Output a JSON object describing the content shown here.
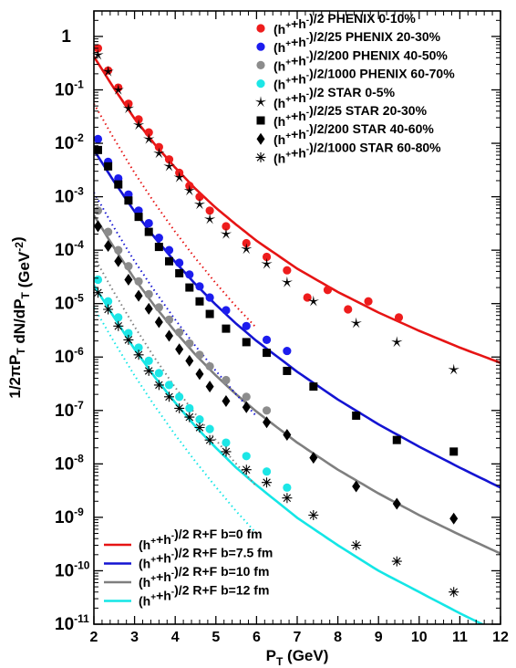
{
  "chart_data": {
    "type": "scatter",
    "xlabel_main": "P",
    "xlabel_sub": "T",
    "xlabel_rest": " (GeV)",
    "ylabel": "1/2πP_T dN/dP_T (GeV^-2)",
    "xlim": [
      2,
      12
    ],
    "ylim": [
      1e-11,
      3
    ],
    "yscale": "log",
    "grid": false,
    "x_ticks": [
      "2",
      "3",
      "4",
      "5",
      "6",
      "7",
      "8",
      "9",
      "10",
      "11",
      "12"
    ],
    "y_ticks": [
      {
        "base": "10",
        "exp": "-11"
      },
      {
        "base": "10",
        "exp": "-10"
      },
      {
        "base": "10",
        "exp": "-9"
      },
      {
        "base": "10",
        "exp": "-8"
      },
      {
        "base": "10",
        "exp": "-7"
      },
      {
        "base": "10",
        "exp": "-6"
      },
      {
        "base": "10",
        "exp": "-5"
      },
      {
        "base": "10",
        "exp": "-4"
      },
      {
        "base": "10",
        "exp": "-3"
      },
      {
        "base": "10",
        "exp": "-2"
      },
      {
        "base": "10",
        "exp": "-1"
      },
      {
        "base": "1",
        "exp": ""
      }
    ],
    "legend_top": [
      {
        "text": "(h⁺+h⁻)/2 PHENIX 0-10%",
        "marker": "circle",
        "color": "#ee1c1c"
      },
      {
        "text": "(h⁺+h⁻)/2/25 PHENIX 20-30%",
        "marker": "circle",
        "color": "#1c1cee"
      },
      {
        "text": "(h⁺+h⁻)/2/200 PHENIX 40-50%",
        "marker": "circle",
        "color": "#8c8c8c"
      },
      {
        "text": "(h⁺+h⁻)/2/1000 PHENIX 60-70%",
        "marker": "circle",
        "color": "#1ce6e6"
      },
      {
        "text": "(h⁺+h⁻)/2 STAR 0-5%",
        "marker": "star",
        "color": "#000000"
      },
      {
        "text": "(h⁺+h⁻)/2/25 STAR 20-30%",
        "marker": "square",
        "color": "#000000"
      },
      {
        "text": "(h⁺+h⁻)/2/200 STAR 40-60%",
        "marker": "diamond",
        "color": "#000000"
      },
      {
        "text": "(h⁺+h⁻)/2/1000 STAR 60-80%",
        "marker": "asterisk",
        "color": "#000000"
      }
    ],
    "legend_bottom": [
      {
        "text": "(h⁺+h⁻)/2 R+F b=0 fm",
        "color": "#e61414"
      },
      {
        "text": "(h⁺+h⁻)/2 R+F b=7.5 fm",
        "color": "#1414d2"
      },
      {
        "text": "(h⁺+h⁻)/2 R+F b=10 fm",
        "color": "#7f7f7f"
      },
      {
        "text": "(h⁺+h⁻)/2 R+F b=12 fm",
        "color": "#14e6e6"
      }
    ],
    "series": [
      {
        "name": "(h⁺+h⁻)/2 PHENIX 0-10%",
        "marker": "circle",
        "color": "#ee1c1c",
        "x": [
          2.1,
          2.35,
          2.6,
          2.85,
          3.1,
          3.35,
          3.6,
          3.85,
          4.1,
          4.35,
          4.6,
          4.85,
          5.25,
          5.75,
          6.25,
          6.75,
          7.25,
          7.75,
          8.25,
          8.75,
          9.5
        ],
        "y": [
          0.6,
          0.23,
          0.11,
          0.055,
          0.028,
          0.016,
          0.0085,
          0.005,
          0.0028,
          0.0016,
          0.001,
          0.00055,
          0.00028,
          0.000135,
          7.5e-05,
          4.2e-05,
          1.3e-05,
          1.8e-05,
          7.8e-06,
          1.1e-05,
          5.5e-06
        ]
      },
      {
        "name": "(h⁺+h⁻)/2/25 PHENIX 20-30%",
        "marker": "circle",
        "color": "#1c1cee",
        "x": [
          2.1,
          2.35,
          2.6,
          2.85,
          3.1,
          3.35,
          3.6,
          3.85,
          4.1,
          4.35,
          4.6,
          4.85,
          5.25,
          5.75,
          6.25,
          6.75
        ],
        "y": [
          0.012,
          0.0045,
          0.0022,
          0.0011,
          0.00055,
          0.00032,
          0.00017,
          0.0001,
          5.8e-05,
          3.5e-05,
          2.1e-05,
          1.3e-05,
          7.5e-06,
          3.8e-06,
          2.1e-06,
          1.3e-06
        ]
      },
      {
        "name": "(h⁺+h⁻)/2/200 PHENIX 40-50%",
        "marker": "circle",
        "color": "#8c8c8c",
        "x": [
          2.1,
          2.35,
          2.6,
          2.85,
          3.1,
          3.35,
          3.6,
          3.85,
          4.1,
          4.35,
          4.6,
          4.85,
          5.25,
          5.75,
          6.25
        ],
        "y": [
          0.00055,
          0.00022,
          0.0001,
          5e-05,
          2.6e-05,
          1.5e-05,
          8.5e-06,
          5e-06,
          2.9e-06,
          1.8e-06,
          1.1e-06,
          6.7e-07,
          3.7e-07,
          1.8e-07,
          1e-07
        ]
      },
      {
        "name": "(h⁺+h⁻)/2/1000 PHENIX 60-70%",
        "marker": "circle",
        "color": "#1ce6e6",
        "x": [
          2.1,
          2.35,
          2.6,
          2.85,
          3.1,
          3.35,
          3.6,
          3.85,
          4.1,
          4.35,
          4.6,
          4.85,
          5.25,
          5.75,
          6.25,
          6.75
        ],
        "y": [
          2.8e-05,
          1.1e-05,
          5.5e-06,
          2.8e-06,
          1.5e-06,
          8.5e-07,
          5e-07,
          3e-07,
          1.8e-07,
          1.1e-07,
          6.8e-08,
          4.5e-08,
          2.5e-08,
          1.4e-08,
          7.2e-09,
          3.6e-09
        ]
      },
      {
        "name": "(h⁺+h⁻)/2 STAR 0-5%",
        "marker": "star",
        "color": "#000000",
        "x": [
          2.1,
          2.35,
          2.6,
          2.85,
          3.1,
          3.35,
          3.6,
          3.85,
          4.1,
          4.35,
          4.6,
          4.85,
          5.25,
          5.75,
          6.25,
          6.75,
          7.4,
          8.45,
          9.45,
          10.85
        ],
        "y": [
          0.45,
          0.22,
          0.1,
          0.045,
          0.022,
          0.012,
          0.0065,
          0.0037,
          0.0023,
          0.0013,
          0.00072,
          0.00038,
          0.0002,
          0.000105,
          5.5e-05,
          2.5e-05,
          1.1e-05,
          4.3e-06,
          1.9e-06,
          5.8e-07
        ]
      },
      {
        "name": "(h⁺+h⁻)/2/25 STAR 20-30%",
        "marker": "square",
        "color": "#000000",
        "x": [
          2.1,
          2.35,
          2.6,
          2.85,
          3.1,
          3.35,
          3.6,
          3.85,
          4.1,
          4.35,
          4.6,
          4.85,
          5.25,
          5.75,
          6.25,
          6.75,
          7.4,
          8.45,
          9.45,
          10.85
        ],
        "y": [
          0.0075,
          0.0037,
          0.0017,
          0.00085,
          0.00042,
          0.00022,
          0.000115,
          6.2e-05,
          3.7e-05,
          2e-05,
          1.1e-05,
          6.4e-06,
          3.4e-06,
          1.9e-06,
          1.2e-06,
          5.5e-07,
          2.8e-07,
          8e-08,
          2.8e-08,
          1.7e-08
        ]
      },
      {
        "name": "(h⁺+h⁻)/2/200 STAR 40-60%",
        "marker": "diamond",
        "color": "#000000",
        "x": [
          2.1,
          2.35,
          2.6,
          2.85,
          3.1,
          3.35,
          3.6,
          3.85,
          4.1,
          4.35,
          4.6,
          4.85,
          5.25,
          5.75,
          6.25,
          6.75,
          7.4,
          8.45,
          9.45,
          10.85
        ],
        "y": [
          0.00028,
          0.00012,
          6.2e-05,
          2.8e-05,
          1.4e-05,
          8e-06,
          4.5e-06,
          2.5e-06,
          1.4e-06,
          8.5e-07,
          4.8e-07,
          2.8e-07,
          1.5e-07,
          1.15e-07,
          6e-08,
          3.5e-08,
          1.3e-08,
          3.8e-09,
          1.8e-09,
          9.5e-10
        ]
      },
      {
        "name": "(h⁺+h⁻)/2/1000 STAR 60-80%",
        "marker": "asterisk",
        "color": "#000000",
        "x": [
          2.1,
          2.35,
          2.6,
          2.85,
          3.1,
          3.35,
          3.6,
          3.85,
          4.1,
          4.35,
          4.6,
          4.85,
          5.25,
          5.75,
          6.25,
          6.75,
          7.4,
          8.45,
          9.45,
          10.85
        ],
        "y": [
          1.6e-05,
          7.8e-06,
          3.8e-06,
          2.1e-06,
          1.1e-06,
          5.5e-07,
          3e-07,
          1.8e-07,
          1.1e-07,
          7.5e-08,
          4.8e-08,
          2.8e-08,
          1.7e-08,
          7.8e-09,
          4.5e-09,
          2.3e-09,
          1.1e-09,
          3e-10,
          1.5e-10,
          4e-11
        ]
      }
    ],
    "curves": [
      {
        "name": "(h⁺+h⁻)/2 R+F b=0 fm",
        "color": "#e61414",
        "style": "solid",
        "x": [
          2,
          2.5,
          3,
          3.5,
          4,
          4.5,
          5,
          5.5,
          6,
          7,
          8,
          9,
          10,
          11,
          12
        ],
        "y": [
          0.42,
          0.105,
          0.029,
          0.0095,
          0.0035,
          0.0014,
          0.00062,
          0.0003,
          0.00015,
          4.5e-05,
          1.65e-05,
          6.8e-06,
          3.1e-06,
          1.5e-06,
          7.8e-07
        ]
      },
      {
        "name": "(h⁺+h⁻)/2 R+F b=7.5 fm",
        "color": "#1414d2",
        "style": "solid",
        "x": [
          2,
          2.5,
          3,
          3.5,
          4,
          4.5,
          5,
          5.5,
          6,
          7,
          8,
          9,
          10,
          11,
          12
        ],
        "y": [
          0.0075,
          0.0019,
          0.00053,
          0.00017,
          6e-05,
          2.3e-05,
          9.5e-06,
          4.2e-06,
          2e-06,
          5.3e-07,
          1.6e-07,
          5.5e-08,
          2.1e-08,
          8.5e-09,
          3.6e-09
        ]
      },
      {
        "name": "(h⁺+h⁻)/2 R+F b=10 fm",
        "color": "#7f7f7f",
        "style": "solid",
        "x": [
          2,
          2.5,
          3,
          3.5,
          4,
          4.5,
          5,
          5.5,
          6,
          7,
          8,
          9,
          10,
          11,
          12
        ],
        "y": [
          0.00045,
          0.00011,
          2.9e-05,
          8.9e-06,
          3e-06,
          1.1e-06,
          4.5e-07,
          2e-07,
          9.5e-08,
          2.5e-08,
          7.8e-09,
          2.8e-09,
          1.1e-09,
          4.7e-10,
          2.1e-10
        ]
      },
      {
        "name": "(h⁺+h⁻)/2 R+F b=12 fm",
        "color": "#14e6e6",
        "style": "solid",
        "x": [
          2,
          2.5,
          3,
          3.5,
          4,
          4.5,
          5,
          5.5,
          6,
          7,
          8,
          9,
          10,
          11,
          12
        ],
        "y": [
          2.2e-05,
          5.5e-06,
          1.4e-06,
          4.2e-07,
          1.4e-07,
          5e-08,
          2e-08,
          8.5e-09,
          4e-09,
          9.8e-10,
          3e-10,
          1e-10,
          4e-11,
          1.6e-11,
          6.8e-12
        ]
      },
      {
        "name": "",
        "color": "#e61414",
        "style": "dotted",
        "x": [
          2,
          2.5,
          3,
          3.5,
          4,
          4.5,
          5,
          5.5,
          6
        ],
        "y": [
          0.055,
          0.012,
          0.0028,
          0.00075,
          0.00022,
          7e-05,
          2.4e-05,
          8.8e-06,
          3.5e-06
        ]
      },
      {
        "name": "",
        "color": "#1414d2",
        "style": "dotted",
        "x": [
          2,
          2.5,
          3,
          3.5,
          4,
          4.5,
          5,
          5.5,
          6
        ],
        "y": [
          0.0012,
          0.00026,
          6.2e-05,
          1.7e-05,
          5e-06,
          1.6e-06,
          5.5e-07,
          2e-07,
          7.8e-08
        ]
      },
      {
        "name": "",
        "color": "#7f7f7f",
        "style": "dotted",
        "x": [
          2,
          2.5,
          3,
          3.5,
          4,
          4.5,
          5,
          5.5,
          6
        ],
        "y": [
          7.5e-05,
          1.6e-05,
          3.7e-06,
          9.5e-07,
          2.7e-07,
          8.5e-08,
          2.8e-08,
          1e-08,
          3.8e-09
        ]
      },
      {
        "name": "",
        "color": "#14e6e6",
        "style": "dotted",
        "x": [
          2,
          2.5,
          3,
          3.5,
          4,
          4.5,
          5,
          5.5,
          6
        ],
        "y": [
          8.5e-06,
          1.9e-06,
          4.5e-07,
          1.2e-07,
          3.5e-08,
          1.1e-08,
          3.7e-09,
          1.3e-09,
          5e-10
        ]
      }
    ]
  }
}
